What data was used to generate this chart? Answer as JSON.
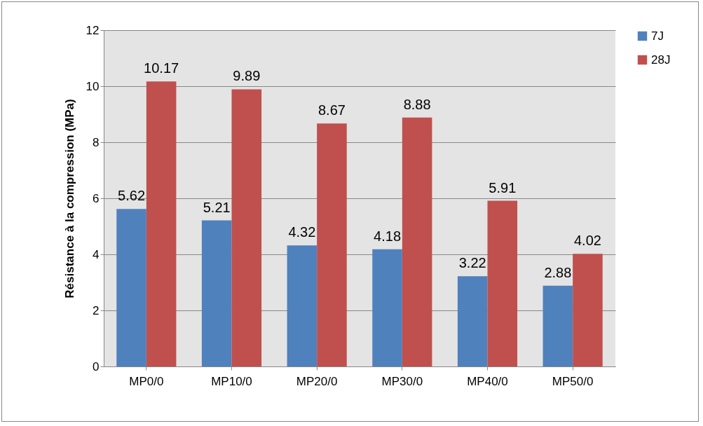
{
  "chart_data": {
    "type": "bar",
    "ylabel": "Résistance à la compression (MPa)",
    "categories": [
      "MP0/0",
      "MP10/0",
      "MP20/0",
      "MP30/0",
      "MP40/0",
      "MP50/0"
    ],
    "series": [
      {
        "name": "7J",
        "color": "#4f81bd",
        "values": [
          5.62,
          5.21,
          4.32,
          4.18,
          3.22,
          2.88
        ]
      },
      {
        "name": "28J",
        "color": "#c0504d",
        "values": [
          10.17,
          9.89,
          8.67,
          8.88,
          5.91,
          4.02
        ]
      }
    ],
    "ylim": [
      0,
      12
    ],
    "yticks": [
      0,
      2,
      4,
      6,
      8,
      10,
      12
    ],
    "grid": "y",
    "legend": "right",
    "data_labels": true
  }
}
